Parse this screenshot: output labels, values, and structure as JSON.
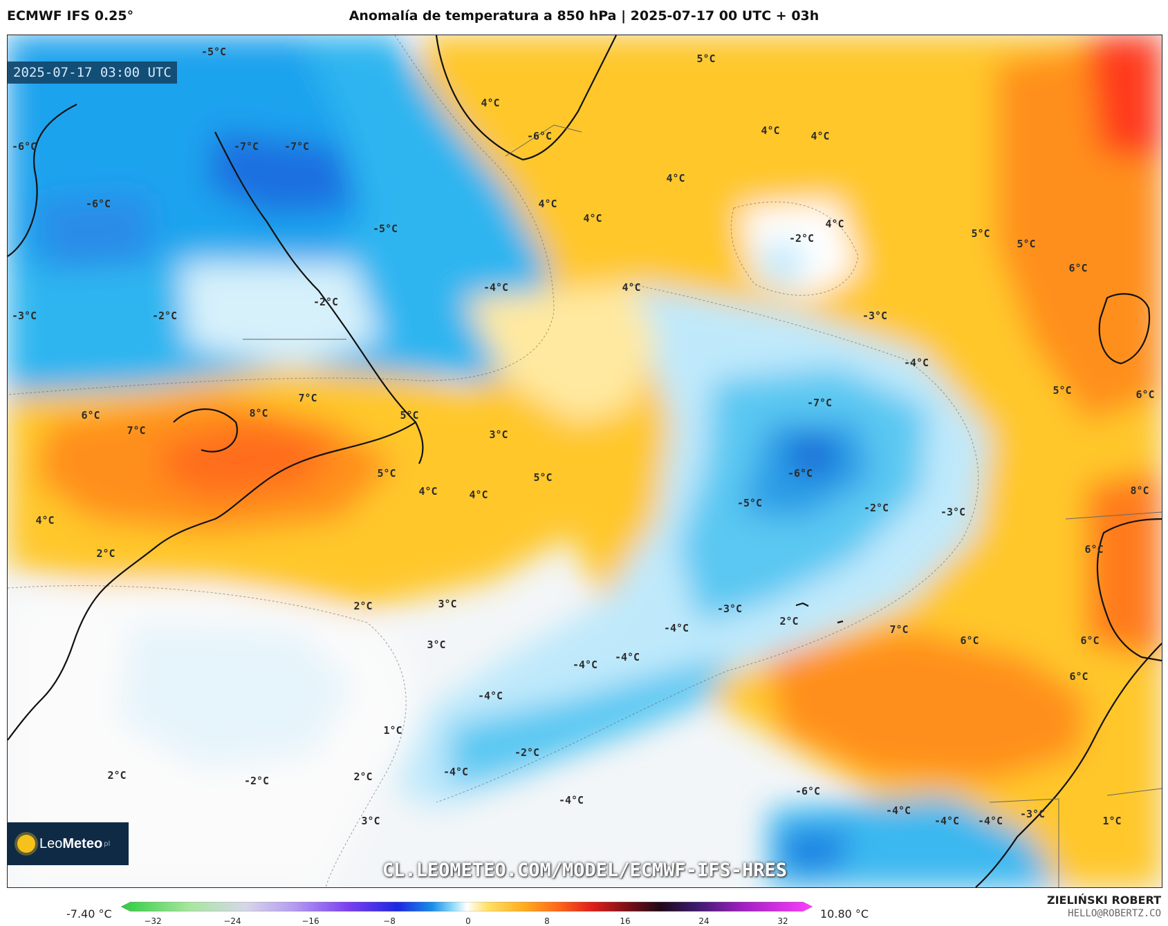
{
  "header": {
    "model": "ECMWF IFS 0.25°",
    "title": "Anomalía de temperatura a 850 hPa | 2025-07-17 00 UTC + 03h"
  },
  "map": {
    "timestamp": "2025-07-17 03:00 UTC",
    "watermark": "CL.LEOMETEO.COM/MODEL/ECMWF-IFS-HRES",
    "logo": {
      "brand_light": "Leo",
      "brand_bold": "Meteo",
      "suffix": "pl"
    },
    "labels": [
      {
        "text": "-5°C"
      },
      {
        "text": "-6°C"
      },
      {
        "text": "-7°C"
      },
      {
        "text": "-7°C"
      },
      {
        "text": "-6°C"
      },
      {
        "text": "-5°C"
      },
      {
        "text": "-4°C"
      },
      {
        "text": "-2°C"
      },
      {
        "text": "-2°C"
      },
      {
        "text": "-3°C"
      },
      {
        "text": "4°C"
      },
      {
        "text": "-6°C"
      },
      {
        "text": "5°C"
      },
      {
        "text": "4°C"
      },
      {
        "text": "4°C"
      },
      {
        "text": "4°C"
      },
      {
        "text": "4°C"
      },
      {
        "text": "4°C"
      },
      {
        "text": "4°C"
      },
      {
        "text": "4°C"
      },
      {
        "text": "-2°C"
      },
      {
        "text": "5°C"
      },
      {
        "text": "5°C"
      },
      {
        "text": "6°C"
      },
      {
        "text": "-3°C"
      },
      {
        "text": "-4°C"
      },
      {
        "text": "-7°C"
      },
      {
        "text": "5°C"
      },
      {
        "text": "6°C"
      },
      {
        "text": "6°C"
      },
      {
        "text": "7°C"
      },
      {
        "text": "7°C"
      },
      {
        "text": "8°C"
      },
      {
        "text": "5°C"
      },
      {
        "text": "3°C"
      },
      {
        "text": "5°C"
      },
      {
        "text": "4°C"
      },
      {
        "text": "4°C"
      },
      {
        "text": "5°C"
      },
      {
        "text": "4°C"
      },
      {
        "text": "2°C"
      },
      {
        "text": "-6°C"
      },
      {
        "text": "-5°C"
      },
      {
        "text": "-2°C"
      },
      {
        "text": "-3°C"
      },
      {
        "text": "8°C"
      },
      {
        "text": "6°C"
      },
      {
        "text": "2°C"
      },
      {
        "text": "3°C"
      },
      {
        "text": "3°C"
      },
      {
        "text": "-3°C"
      },
      {
        "text": "-4°C"
      },
      {
        "text": "2°C"
      },
      {
        "text": "7°C"
      },
      {
        "text": "6°C"
      },
      {
        "text": "6°C"
      },
      {
        "text": "-4°C"
      },
      {
        "text": "-4°C"
      },
      {
        "text": "-4°C"
      },
      {
        "text": "6°C"
      },
      {
        "text": "1°C"
      },
      {
        "text": "-2°C"
      },
      {
        "text": "-4°C"
      },
      {
        "text": "2°C"
      },
      {
        "text": "-2°C"
      },
      {
        "text": "-6°C"
      },
      {
        "text": "-4°C"
      },
      {
        "text": "-4°C"
      },
      {
        "text": "3°C"
      },
      {
        "text": "-4°C"
      },
      {
        "text": "-4°C"
      },
      {
        "text": "-3°C"
      },
      {
        "text": "1°C"
      },
      {
        "text": "2°C"
      }
    ]
  },
  "colorbar": {
    "min_label": "-7.40 °C",
    "max_label": "10.80 °C",
    "ticks": [
      "−32",
      "−24",
      "−16",
      "−8",
      "0",
      "8",
      "16",
      "24",
      "32"
    ]
  },
  "credit": {
    "name": "ZIELIŃSKI ROBERT",
    "contact": "HELLO@ROBERTZ.CO"
  }
}
